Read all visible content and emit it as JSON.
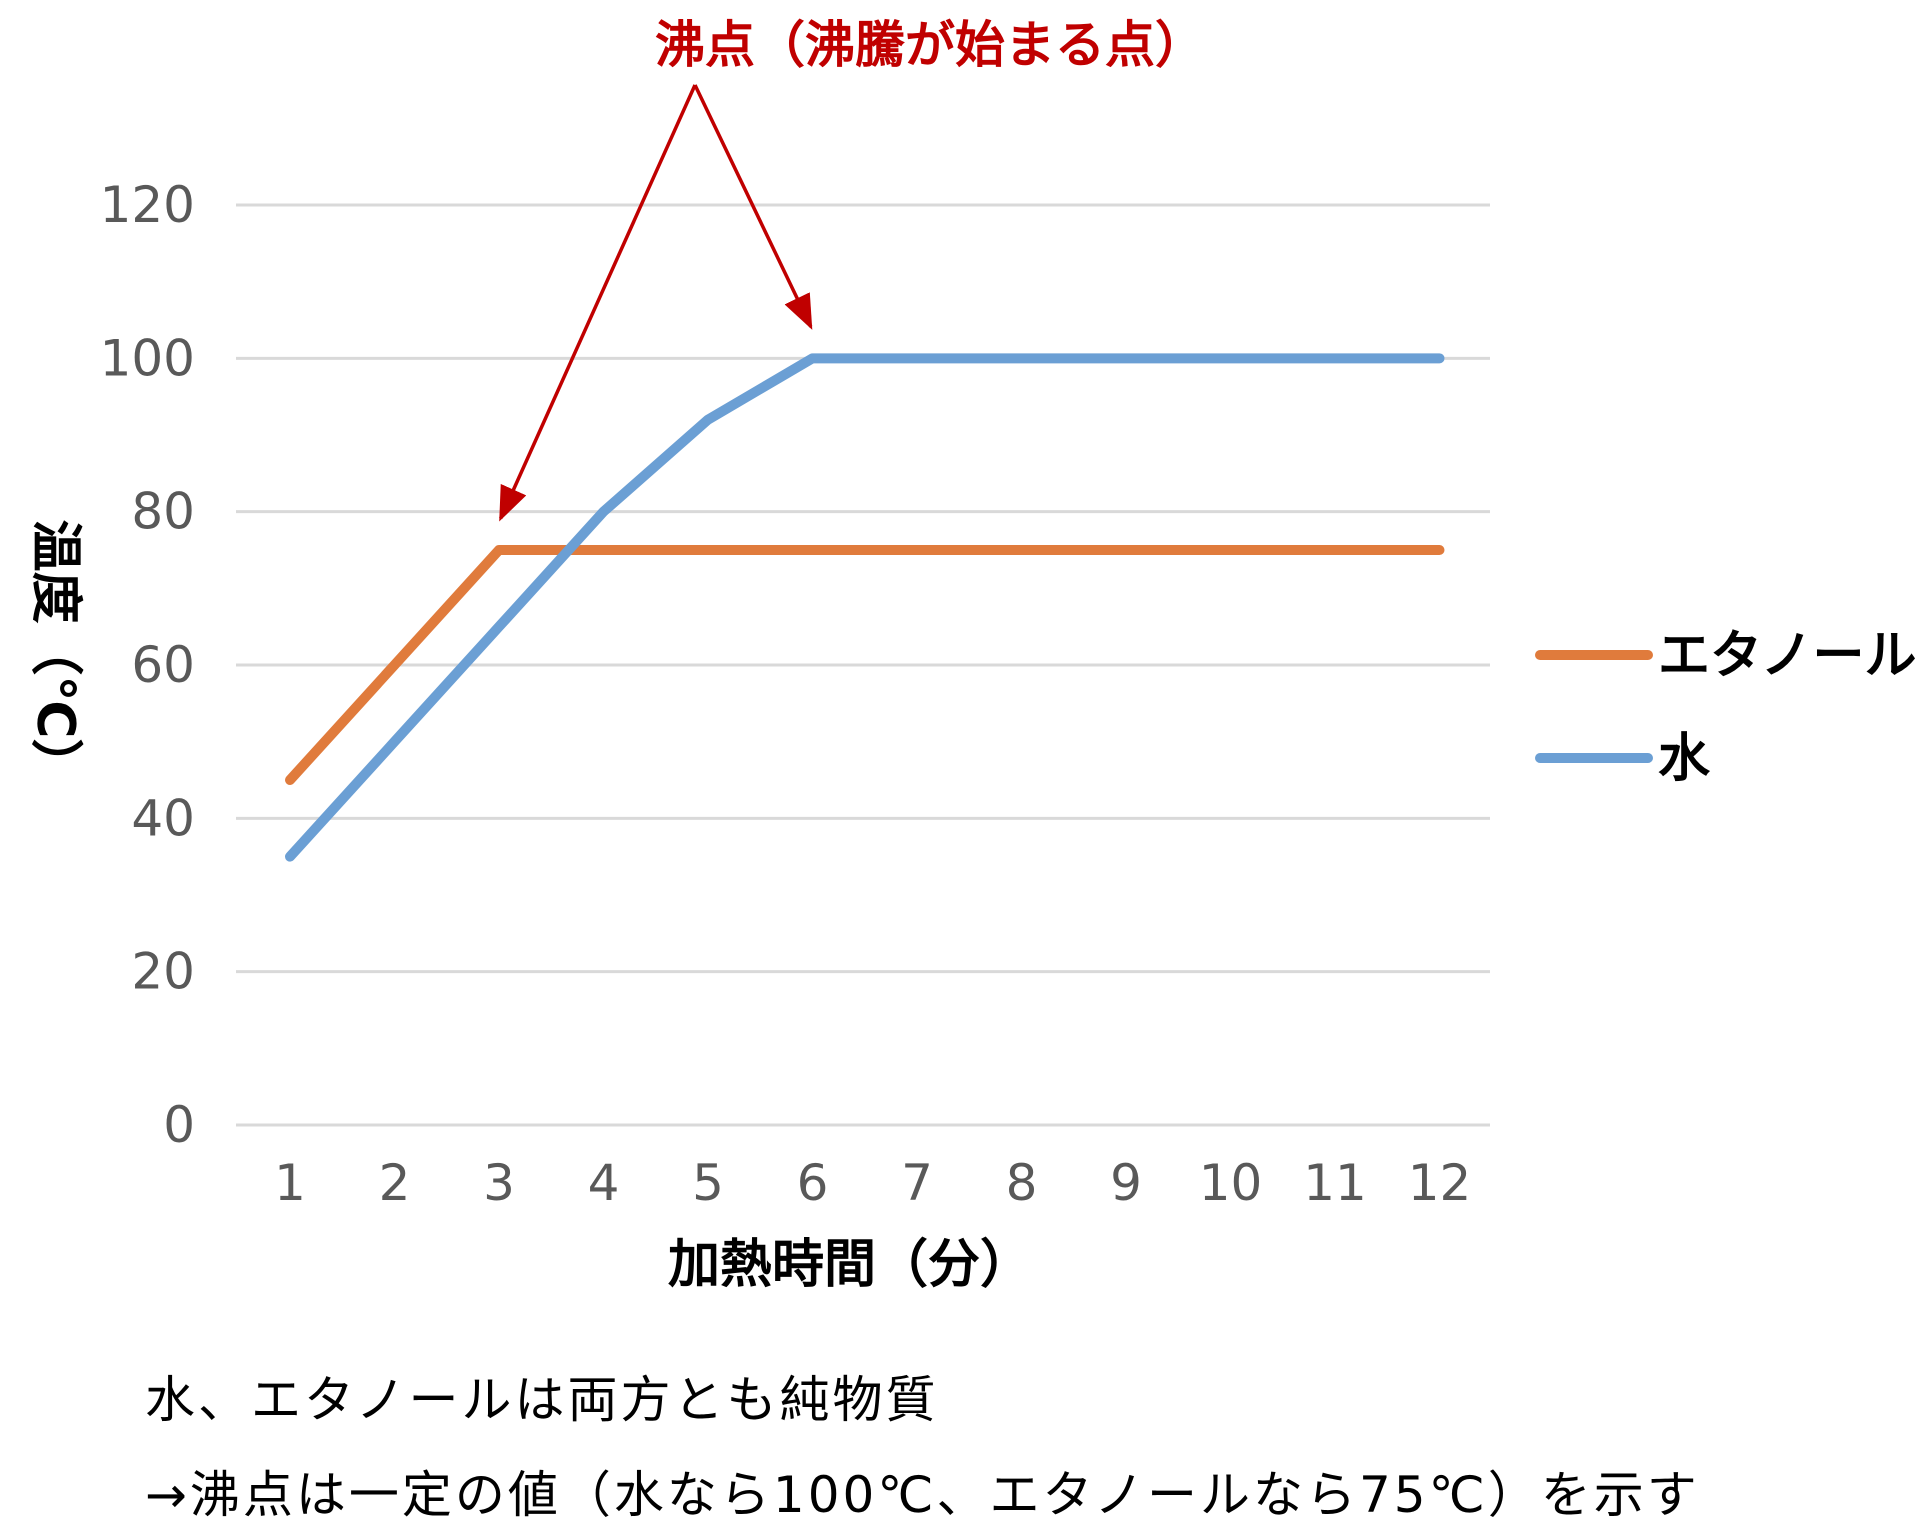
{
  "chart_data": {
    "type": "line",
    "title": "",
    "xlabel": "加熱時間（分）",
    "ylabel": "温度（℃）",
    "categories": [
      "1",
      "2",
      "3",
      "4",
      "5",
      "6",
      "7",
      "8",
      "9",
      "10",
      "11",
      "12"
    ],
    "ylim": [
      0,
      120
    ],
    "yticks": [
      0,
      20,
      40,
      60,
      80,
      100,
      120
    ],
    "grid": true,
    "legend_position": "right",
    "series": [
      {
        "name": "エタノール",
        "color": "#e07b3c",
        "values": [
          45,
          60,
          75,
          75,
          75,
          75,
          75,
          75,
          75,
          75,
          75,
          75
        ]
      },
      {
        "name": "水",
        "color": "#6b9fd4",
        "values": [
          35,
          50,
          65,
          80,
          92,
          100,
          100,
          100,
          100,
          100,
          100,
          100
        ]
      }
    ],
    "annotation": {
      "text": "沸点（沸騰が始まる点）",
      "color": "#c00000",
      "arrow_targets": [
        {
          "series": "エタノール",
          "category": "3",
          "value": 75
        },
        {
          "series": "水",
          "category": "6",
          "value": 100
        }
      ]
    },
    "gridline_color": "#d9d9d9",
    "tick_color": "#595959"
  },
  "notes": {
    "line1": "水、エタノールは両方とも純物質",
    "line2": "→沸点は一定の値（水なら100℃、エタノールなら75℃）を示す"
  }
}
